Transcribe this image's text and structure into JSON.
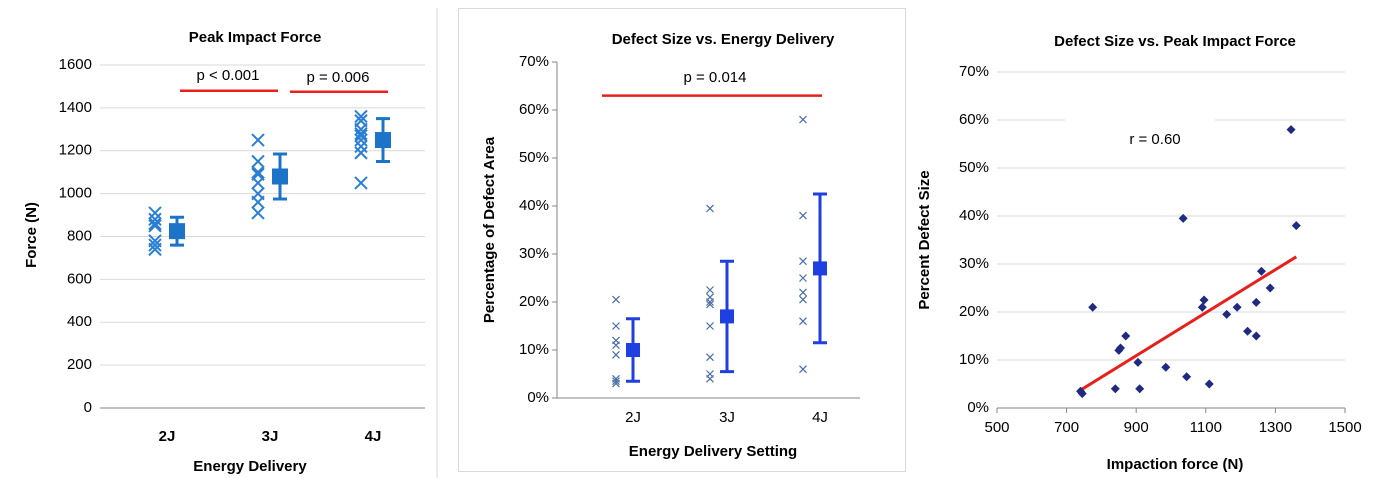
{
  "chart_data": [
    {
      "type": "dot",
      "title": "Peak Impact Force",
      "ylabel": "Force (N)",
      "xlabel": "Energy Delivery",
      "categories": [
        "2J",
        "3J",
        "4J"
      ],
      "points": [
        [
          910,
          880,
          860,
          850,
          780,
          760,
          740
        ],
        [
          1250,
          1150,
          1100,
          1090,
          1050,
          1000,
          960,
          910
        ],
        [
          1360,
          1340,
          1300,
          1280,
          1270,
          1250,
          1220,
          1190,
          1050
        ]
      ],
      "means": [
        825,
        1080,
        1250
      ],
      "errors": [
        65,
        105,
        100
      ],
      "point_color": "#2a7fd4",
      "mean_color": "#1c74c8",
      "ylim": [
        0,
        1600
      ],
      "yticks": [
        0,
        200,
        400,
        600,
        800,
        1000,
        1200,
        1400,
        1600
      ],
      "grid": true,
      "annotations": [
        {
          "text": "p < 0.001",
          "y": 1480
        },
        {
          "text": "p = 0.006",
          "y": 1475
        }
      ]
    },
    {
      "type": "dot",
      "title": "Defect Size vs. Energy Delivery",
      "ylabel": "Percentage of Defect  Area",
      "xlabel": "Energy Delivery Setting",
      "categories": [
        "2J",
        "3J",
        "4J"
      ],
      "points": [
        [
          20.5,
          15,
          12,
          11,
          9,
          4,
          3.5,
          3
        ],
        [
          39.5,
          22.5,
          21,
          20,
          19.5,
          15,
          8.5,
          5,
          4
        ],
        [
          58,
          38,
          28.5,
          25,
          22,
          20.5,
          16,
          6
        ]
      ],
      "means": [
        10,
        17,
        27
      ],
      "errors": [
        6.5,
        11.5,
        15.5
      ],
      "point_color": "#4a6fa5",
      "mean_color": "#1f3fe0",
      "ylim": [
        0,
        70
      ],
      "yticks": [
        {
          "value": 0,
          "label": "0%"
        },
        {
          "value": 10,
          "label": "10%"
        },
        {
          "value": 20,
          "label": "20%"
        },
        {
          "value": 30,
          "label": "30%"
        },
        {
          "value": 40,
          "label": "40%"
        },
        {
          "value": 50,
          "label": "50%"
        },
        {
          "value": 60,
          "label": "60%"
        },
        {
          "value": 70,
          "label": "70%"
        }
      ],
      "grid": false,
      "annotations": [
        {
          "text": "p = 0.014",
          "y": 63
        }
      ]
    },
    {
      "type": "scatter",
      "title": "Defect Size vs. Peak Impact Force",
      "ylabel": "Percent Defect  Size",
      "xlabel": "Impaction force (N)",
      "x": [
        740,
        745,
        775,
        840,
        850,
        855,
        870,
        905,
        910,
        985,
        1035,
        1045,
        1090,
        1095,
        1110,
        1160,
        1190,
        1220,
        1245,
        1245,
        1260,
        1285,
        1345,
        1360
      ],
      "values": [
        3.5,
        3,
        21,
        4,
        12,
        12.5,
        15,
        9.5,
        4,
        8.5,
        39.5,
        6.5,
        21,
        22.5,
        5,
        19.5,
        21,
        16,
        15,
        22,
        28.5,
        25,
        58,
        38
      ],
      "color": "#1f2a80",
      "trendline": {
        "x": [
          735,
          1360
        ],
        "y": [
          3.5,
          31.5
        ],
        "color": "#e8201c"
      },
      "xlim": [
        500,
        1500
      ],
      "xticks": [
        500,
        700,
        900,
        1100,
        1300,
        1500
      ],
      "ylim": [
        0,
        70
      ],
      "yticks": [
        {
          "value": 0,
          "label": "0%"
        },
        {
          "value": 10,
          "label": "10%"
        },
        {
          "value": 20,
          "label": "20%"
        },
        {
          "value": 30,
          "label": "30%"
        },
        {
          "value": 40,
          "label": "40%"
        },
        {
          "value": 50,
          "label": "50%"
        },
        {
          "value": 60,
          "label": "60%"
        },
        {
          "value": 70,
          "label": "70%"
        }
      ],
      "grid": true,
      "annotations": [
        {
          "text": "r = 0.60"
        }
      ]
    }
  ]
}
